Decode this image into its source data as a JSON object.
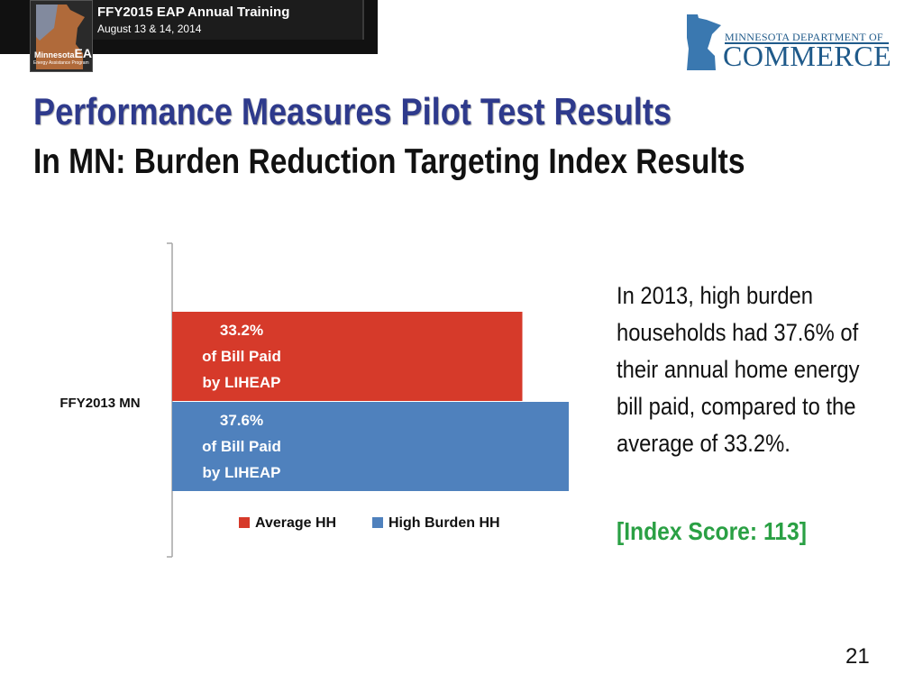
{
  "header": {
    "event_title": "FFY2015 EAP Annual Training",
    "event_date": "August 13 & 14, 2014",
    "eap_logo": {
      "top_text": "Minnesota",
      "big_text": "EAP",
      "sub_text": "Energy Assistance Program"
    },
    "commerce_logo": {
      "line1": "MINNESOTA DEPARTMENT OF",
      "line2": "COMMERCE",
      "icon": "minnesota-state-icon"
    }
  },
  "slide": {
    "title": "Performance Measures Pilot Test Results",
    "subtitle": "In MN: Burden Reduction Targeting Index Results",
    "description": "In 2013, high burden households had 37.6% of their annual home energy bill paid, compared to the average of 33.2%.",
    "index_score": "[Index Score:  113]",
    "page_number": "21"
  },
  "colors": {
    "title": "#2e3a8c",
    "average_hh": "#d63a2a",
    "high_burden_hh": "#4f81bd",
    "index_score": "#2aa044"
  },
  "chart_data": {
    "type": "bar",
    "orientation": "horizontal",
    "categories": [
      "FFY2013 MN"
    ],
    "series": [
      {
        "name": "Average HH",
        "values": [
          33.2
        ],
        "color": "#d63a2a",
        "label_lines": [
          "33.2%",
          "of Bill Paid",
          "by LIHEAP"
        ]
      },
      {
        "name": "High Burden HH",
        "values": [
          37.6
        ],
        "color": "#4f81bd",
        "label_lines": [
          "37.6%",
          "of Bill Paid",
          "by LIHEAP"
        ]
      }
    ],
    "title": "",
    "xlabel": "",
    "ylabel": "",
    "xlim": [
      0,
      38
    ],
    "grid": false,
    "legend": "bottom"
  }
}
